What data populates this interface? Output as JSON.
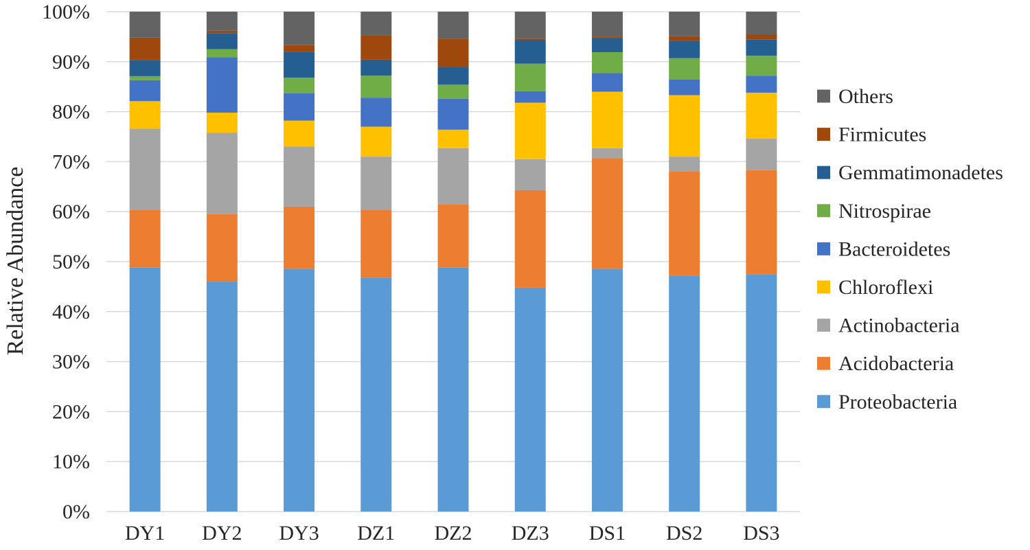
{
  "chart_data": {
    "type": "bar",
    "stacked": true,
    "title": "",
    "xlabel": "",
    "ylabel": "Relative Abundance",
    "ylim": [
      0,
      100
    ],
    "yticks": [
      "0%",
      "10%",
      "20%",
      "30%",
      "40%",
      "50%",
      "60%",
      "70%",
      "80%",
      "90%",
      "100%"
    ],
    "categories": [
      "DY1",
      "DY2",
      "DY3",
      "DZ1",
      "DZ2",
      "DZ3",
      "DS1",
      "DS2",
      "DS3"
    ],
    "legend_position": "right",
    "series": [
      {
        "name": "Proteobacteria",
        "color": "#5B9BD5",
        "values": [
          48.8,
          46.0,
          48.5,
          46.8,
          48.8,
          44.8,
          48.5,
          47.2,
          47.5
        ]
      },
      {
        "name": "Acidobacteria",
        "color": "#ED7D31",
        "values": [
          11.5,
          13.5,
          12.5,
          13.5,
          12.7,
          19.5,
          22.2,
          20.8,
          20.8
        ]
      },
      {
        "name": "Actinobacteria",
        "color": "#A5A5A5",
        "values": [
          16.3,
          16.3,
          12.0,
          10.7,
          11.2,
          6.2,
          2.0,
          3.0,
          6.3
        ]
      },
      {
        "name": "Chloroflexi",
        "color": "#FFC000",
        "values": [
          5.5,
          4.0,
          5.2,
          6.0,
          3.7,
          11.3,
          11.3,
          12.3,
          9.2
        ]
      },
      {
        "name": "Bacteroidetes",
        "color": "#4472C4",
        "values": [
          4.2,
          11.1,
          5.5,
          5.8,
          6.2,
          2.3,
          3.7,
          3.1,
          3.4
        ]
      },
      {
        "name": "Nitrospirae",
        "color": "#70AD47",
        "values": [
          0.8,
          1.6,
          3.1,
          4.4,
          2.8,
          5.5,
          4.2,
          4.3,
          4.0
        ]
      },
      {
        "name": "Gemmatimonadetes",
        "color": "#255E91",
        "values": [
          3.2,
          3.2,
          5.2,
          3.2,
          3.6,
          4.7,
          2.8,
          3.4,
          3.2
        ]
      },
      {
        "name": "Firmicutes",
        "color": "#9E480E",
        "values": [
          4.5,
          0.5,
          1.3,
          4.8,
          5.6,
          0.3,
          0.3,
          1.0,
          1.0
        ]
      },
      {
        "name": "Others",
        "color": "#636363",
        "values": [
          5.2,
          3.8,
          6.7,
          4.8,
          5.4,
          5.4,
          5.0,
          4.9,
          4.6
        ]
      }
    ]
  }
}
